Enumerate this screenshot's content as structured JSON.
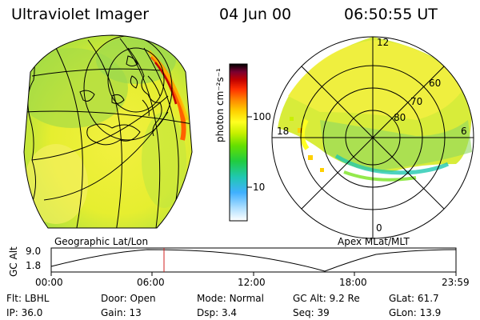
{
  "header": {
    "title": "Ultraviolet Imager",
    "date": "04 Jun 00",
    "time": "06:50:55 UT"
  },
  "colorbar": {
    "label": "photon cm⁻²s⁻¹",
    "ticks": [
      "100",
      "10"
    ],
    "colors": [
      "#000000",
      "#3a0022",
      "#7a0030",
      "#c00000",
      "#ff3000",
      "#ff8800",
      "#ffd000",
      "#ffff20",
      "#c8f000",
      "#66e000",
      "#20cc40",
      "#20c8b0",
      "#40b0ff",
      "#b0e0ff",
      "#ffffff"
    ]
  },
  "left_panel": {
    "caption": "Geographic Lat/Lon"
  },
  "right_panel": {
    "caption": "Apex MLat/MLT",
    "mlt_labels": {
      "top": "12",
      "left": "18",
      "right": "6",
      "bottom": "0"
    },
    "lat_labels": [
      "60",
      "70",
      "80"
    ]
  },
  "timeline": {
    "ylabel": "GC Alt",
    "y_ticks": [
      "9.0",
      "1.8"
    ],
    "x_ticks": [
      "00:00",
      "06:00",
      "12:00",
      "18:00",
      "23:59"
    ],
    "marker_time": "06:50"
  },
  "info": {
    "row1": [
      {
        "label": "Flt:",
        "value": "LBHL"
      },
      {
        "label": "Door:",
        "value": "Open"
      },
      {
        "label": "Mode:",
        "value": "Normal"
      },
      {
        "label": "GC Alt:",
        "value": "9.2 Re"
      },
      {
        "label": "GLat:",
        "value": "61.7"
      }
    ],
    "row2": [
      {
        "label": "IP:",
        "value": "36.0"
      },
      {
        "label": "Gain:",
        "value": "13"
      },
      {
        "label": "Dsp:",
        "value": "3.4"
      },
      {
        "label": "Seq:",
        "value": "39"
      },
      {
        "label": "GLon:",
        "value": "13.9"
      }
    ]
  }
}
